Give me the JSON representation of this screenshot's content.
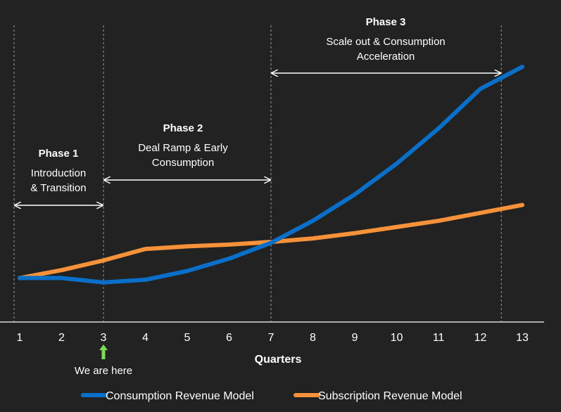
{
  "chart_data": {
    "type": "line",
    "x": [
      1,
      2,
      3,
      4,
      5,
      6,
      7,
      8,
      9,
      10,
      11,
      12,
      13
    ],
    "xlabel": "Quarters",
    "ylabel": "",
    "series": [
      {
        "name": "Consumption Revenue Model",
        "color": "#0a6fc8",
        "values": [
          5.0,
          5.0,
          4.5,
          4.8,
          5.8,
          7.2,
          9.0,
          11.5,
          14.5,
          18.0,
          22.0,
          26.5,
          29.0
        ]
      },
      {
        "name": "Subscription Revenue Model",
        "color": "#f7923a",
        "values": [
          5.0,
          5.9,
          7.0,
          8.3,
          8.6,
          8.8,
          9.1,
          9.5,
          10.1,
          10.8,
          11.5,
          12.4,
          13.3
        ]
      }
    ],
    "ylim": [
      0,
      35
    ],
    "grid": false,
    "legend": "bottom"
  },
  "phases": [
    {
      "title": "Phase 1",
      "lines": [
        "Introduction",
        "& Transition"
      ],
      "start": 1,
      "end": 3
    },
    {
      "title": "Phase 2",
      "lines": [
        "Deal Ramp & Early",
        "Consumption"
      ],
      "start": 3,
      "end": 7
    },
    {
      "title": "Phase 3",
      "lines": [
        "Scale out & Consumption",
        "Acceleration"
      ],
      "start": 7,
      "end": 12.5
    }
  ],
  "marker": {
    "label": "We are here",
    "quarter": 3,
    "color": "#7ed957"
  },
  "colors": {
    "background": "#222222",
    "text": "#ffffff",
    "divider": "#9a9a9a"
  }
}
